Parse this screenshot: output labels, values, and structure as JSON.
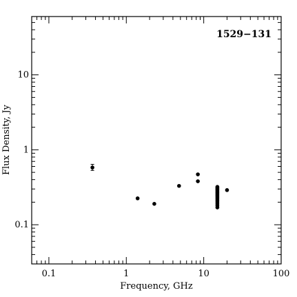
{
  "chart_data": {
    "type": "scatter",
    "title": "1529−131",
    "xlabel": "Frequency, GHz",
    "ylabel": "Flux Density, Jy",
    "x_scale": "log",
    "y_scale": "log",
    "xlim": [
      0.06,
      100
    ],
    "ylim": [
      0.03,
      60
    ],
    "x_ticks": [
      {
        "value": 0.1,
        "label": "0.1"
      },
      {
        "value": 1,
        "label": "1"
      },
      {
        "value": 10,
        "label": "10"
      },
      {
        "value": 100,
        "label": "100"
      }
    ],
    "y_ticks": [
      {
        "value": 0.1,
        "label": "0.1"
      },
      {
        "value": 1,
        "label": "1"
      },
      {
        "value": 10,
        "label": "10"
      }
    ],
    "grid": false,
    "legend": "none",
    "marker_color": "#000000",
    "points": [
      {
        "x": 0.365,
        "y": 0.58,
        "yerr": [
          0.53,
          0.64
        ]
      },
      {
        "x": 1.4,
        "y": 0.225
      },
      {
        "x": 2.3,
        "y": 0.19
      },
      {
        "x": 4.8,
        "y": 0.33
      },
      {
        "x": 8.4,
        "y": 0.47
      },
      {
        "x": 8.4,
        "y": 0.38
      },
      {
        "x": 15.0,
        "y": 0.17
      },
      {
        "x": 15.0,
        "y": 0.18
      },
      {
        "x": 15.0,
        "y": 0.19
      },
      {
        "x": 15.0,
        "y": 0.2
      },
      {
        "x": 15.0,
        "y": 0.21
      },
      {
        "x": 15.0,
        "y": 0.22
      },
      {
        "x": 15.0,
        "y": 0.23
      },
      {
        "x": 15.0,
        "y": 0.24
      },
      {
        "x": 15.0,
        "y": 0.25
      },
      {
        "x": 15.0,
        "y": 0.26
      },
      {
        "x": 15.0,
        "y": 0.27
      },
      {
        "x": 15.0,
        "y": 0.28
      },
      {
        "x": 15.0,
        "y": 0.29
      },
      {
        "x": 15.0,
        "y": 0.3
      },
      {
        "x": 15.0,
        "y": 0.31
      },
      {
        "x": 15.0,
        "y": 0.32
      },
      {
        "x": 20.0,
        "y": 0.29
      }
    ]
  }
}
